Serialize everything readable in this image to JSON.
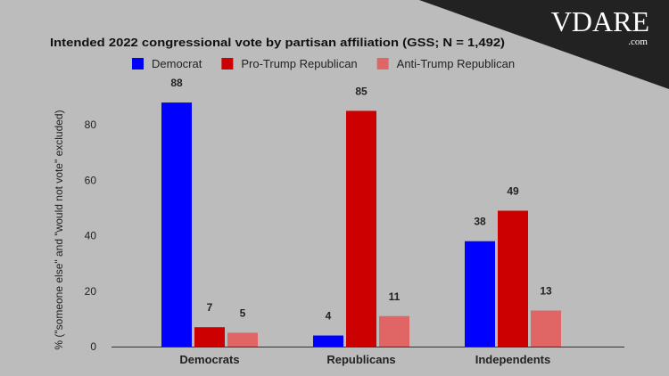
{
  "brand": {
    "logo": "VDARE",
    "logo_suffix": ".com"
  },
  "chart_data": {
    "type": "bar",
    "title": "Intended 2022 congressional vote by partisan affiliation (GSS; N = 1,492)",
    "xlabel": "",
    "ylabel": "% (\"someone else\" and \"would not vote\" excluded)",
    "categories": [
      "Democrats",
      "Republicans",
      "Independents"
    ],
    "series": [
      {
        "name": "Democrat",
        "color": "#0000ff",
        "values": [
          88,
          4,
          38
        ]
      },
      {
        "name": "Pro-Trump Republican",
        "color": "#cc0000",
        "values": [
          7,
          85,
          49
        ]
      },
      {
        "name": "Anti-Trump Republican",
        "color": "#e06666",
        "values": [
          5,
          11,
          13
        ]
      }
    ],
    "ylim": [
      0,
      100
    ],
    "yticks": [
      0,
      20,
      40,
      60,
      80
    ],
    "grid": false,
    "legend": "top-center",
    "data_labels": true
  }
}
